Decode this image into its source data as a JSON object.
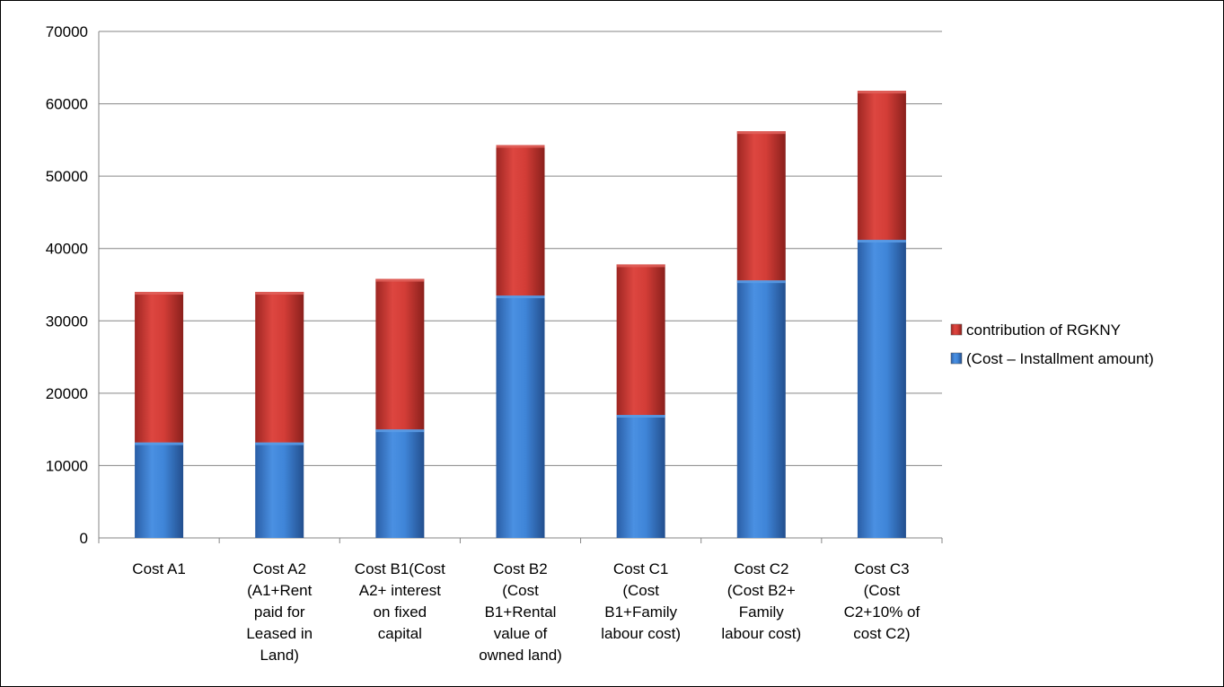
{
  "chart_data": {
    "type": "bar",
    "stacked": true,
    "categories": [
      "Cost A1",
      "Cost A2 (A1+Rent paid for Leased in Land)",
      "Cost B1(Cost A2+ interest on fixed capital",
      "Cost B2 (Cost B1+Rental value of owned land)",
      "Cost C1 (Cost B1+Family labour cost)",
      "Cost C2 (Cost B2+ Family labour cost)",
      "Cost C3 (Cost C2+10% of cost C2)"
    ],
    "category_lines": [
      [
        "Cost A1"
      ],
      [
        "Cost A2",
        "(A1+Rent",
        "paid for",
        "Leased in",
        "Land)"
      ],
      [
        "Cost B1(Cost",
        "A2+ interest",
        "on fixed",
        "capital"
      ],
      [
        "Cost B2",
        "(Cost",
        "B1+Rental",
        "value of",
        "owned land)"
      ],
      [
        "Cost C1",
        "(Cost",
        "B1+Family",
        "labour cost)"
      ],
      [
        "Cost C2",
        "(Cost B2+",
        "Family",
        "labour cost)"
      ],
      [
        "Cost C3",
        "(Cost",
        "C2+10% of",
        "cost C2)"
      ]
    ],
    "series": [
      {
        "name": "(Cost – Installment amount)",
        "color": "#3c7dd1",
        "values": [
          13200,
          13200,
          15000,
          33500,
          17000,
          35600,
          41200
        ]
      },
      {
        "name": "contribution of RGKNY",
        "color": "#d13a34",
        "values": [
          20800,
          20800,
          20800,
          20800,
          20800,
          20600,
          20600
        ]
      }
    ],
    "ylim": [
      0,
      70000
    ],
    "yticks": [
      0,
      10000,
      20000,
      30000,
      40000,
      50000,
      60000,
      70000
    ],
    "grid": true,
    "legend_position": "right",
    "title": "",
    "xlabel": "",
    "ylabel": ""
  }
}
